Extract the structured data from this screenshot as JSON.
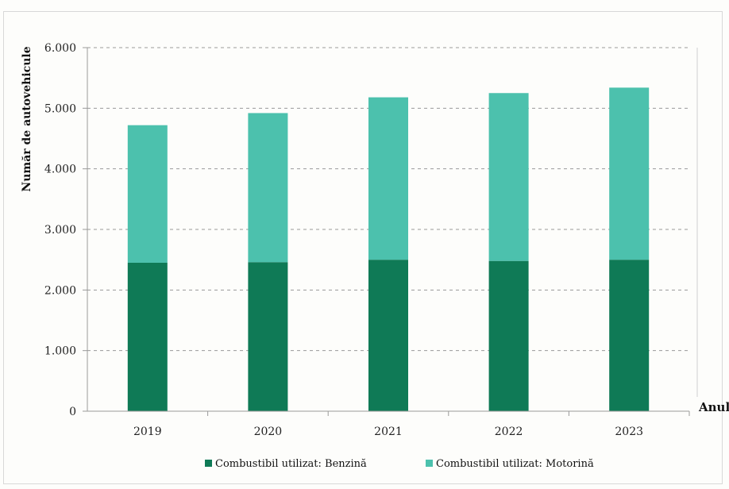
{
  "chart_data": {
    "type": "bar",
    "stacked": true,
    "categories": [
      "2019",
      "2020",
      "2021",
      "2022",
      "2023"
    ],
    "series": [
      {
        "name": "Combustibil utilizat: Benzină",
        "values": [
          2450,
          2460,
          2500,
          2480,
          2500
        ],
        "color": "#0f7a56"
      },
      {
        "name": "Combustibil utilizat: Motorină",
        "values": [
          2270,
          2460,
          2680,
          2770,
          2840
        ],
        "color": "#4cc1ad"
      }
    ],
    "ylim": [
      0,
      6000
    ],
    "yticks": [
      "0",
      "1.000",
      "2.000",
      "3.000",
      "4.000",
      "5.000",
      "6.000"
    ],
    "ylabel": "Număr de autovehicule",
    "xlabel": "Anul",
    "grid": true,
    "legend_position": "bottom"
  }
}
